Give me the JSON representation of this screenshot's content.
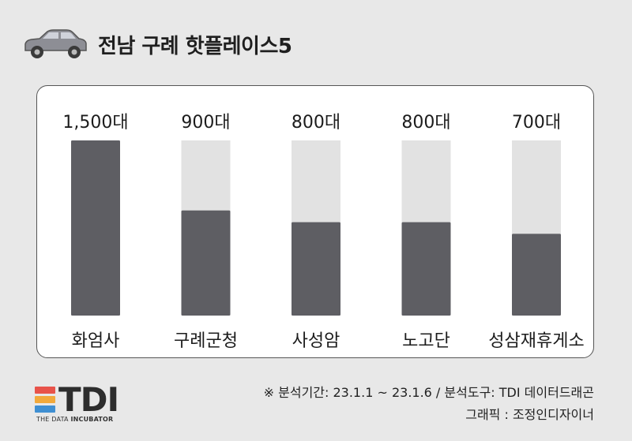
{
  "header": {
    "title": "전남 구례 핫플레이스5",
    "icon": "car-icon",
    "car_color": "#8d8e95"
  },
  "chart_data": {
    "type": "bar",
    "categories": [
      "화엄사",
      "구례군청",
      "사성암",
      "노고단",
      "성삼재휴게소"
    ],
    "values": [
      1500,
      900,
      800,
      800,
      700
    ],
    "value_labels": [
      "1,500대",
      "900대",
      "800대",
      "800대",
      "700대"
    ],
    "ylim": [
      0,
      1500
    ],
    "grid": false,
    "bar_color": "#5e5e63",
    "track_color": "#e2e2e2"
  },
  "footer": {
    "source": "※ 분석기간: 23.1.1 ~ 23.1.6 / 분석도구: TDI 데이터드래곤",
    "credit": "그래픽 : 조정인디자이너",
    "logo": {
      "text": "TDI",
      "sub_light": "THE DATA ",
      "sub_bold": "INCUBATOR",
      "stripe_colors": [
        "#e8534a",
        "#f2a93b",
        "#3f8fd2"
      ]
    }
  }
}
